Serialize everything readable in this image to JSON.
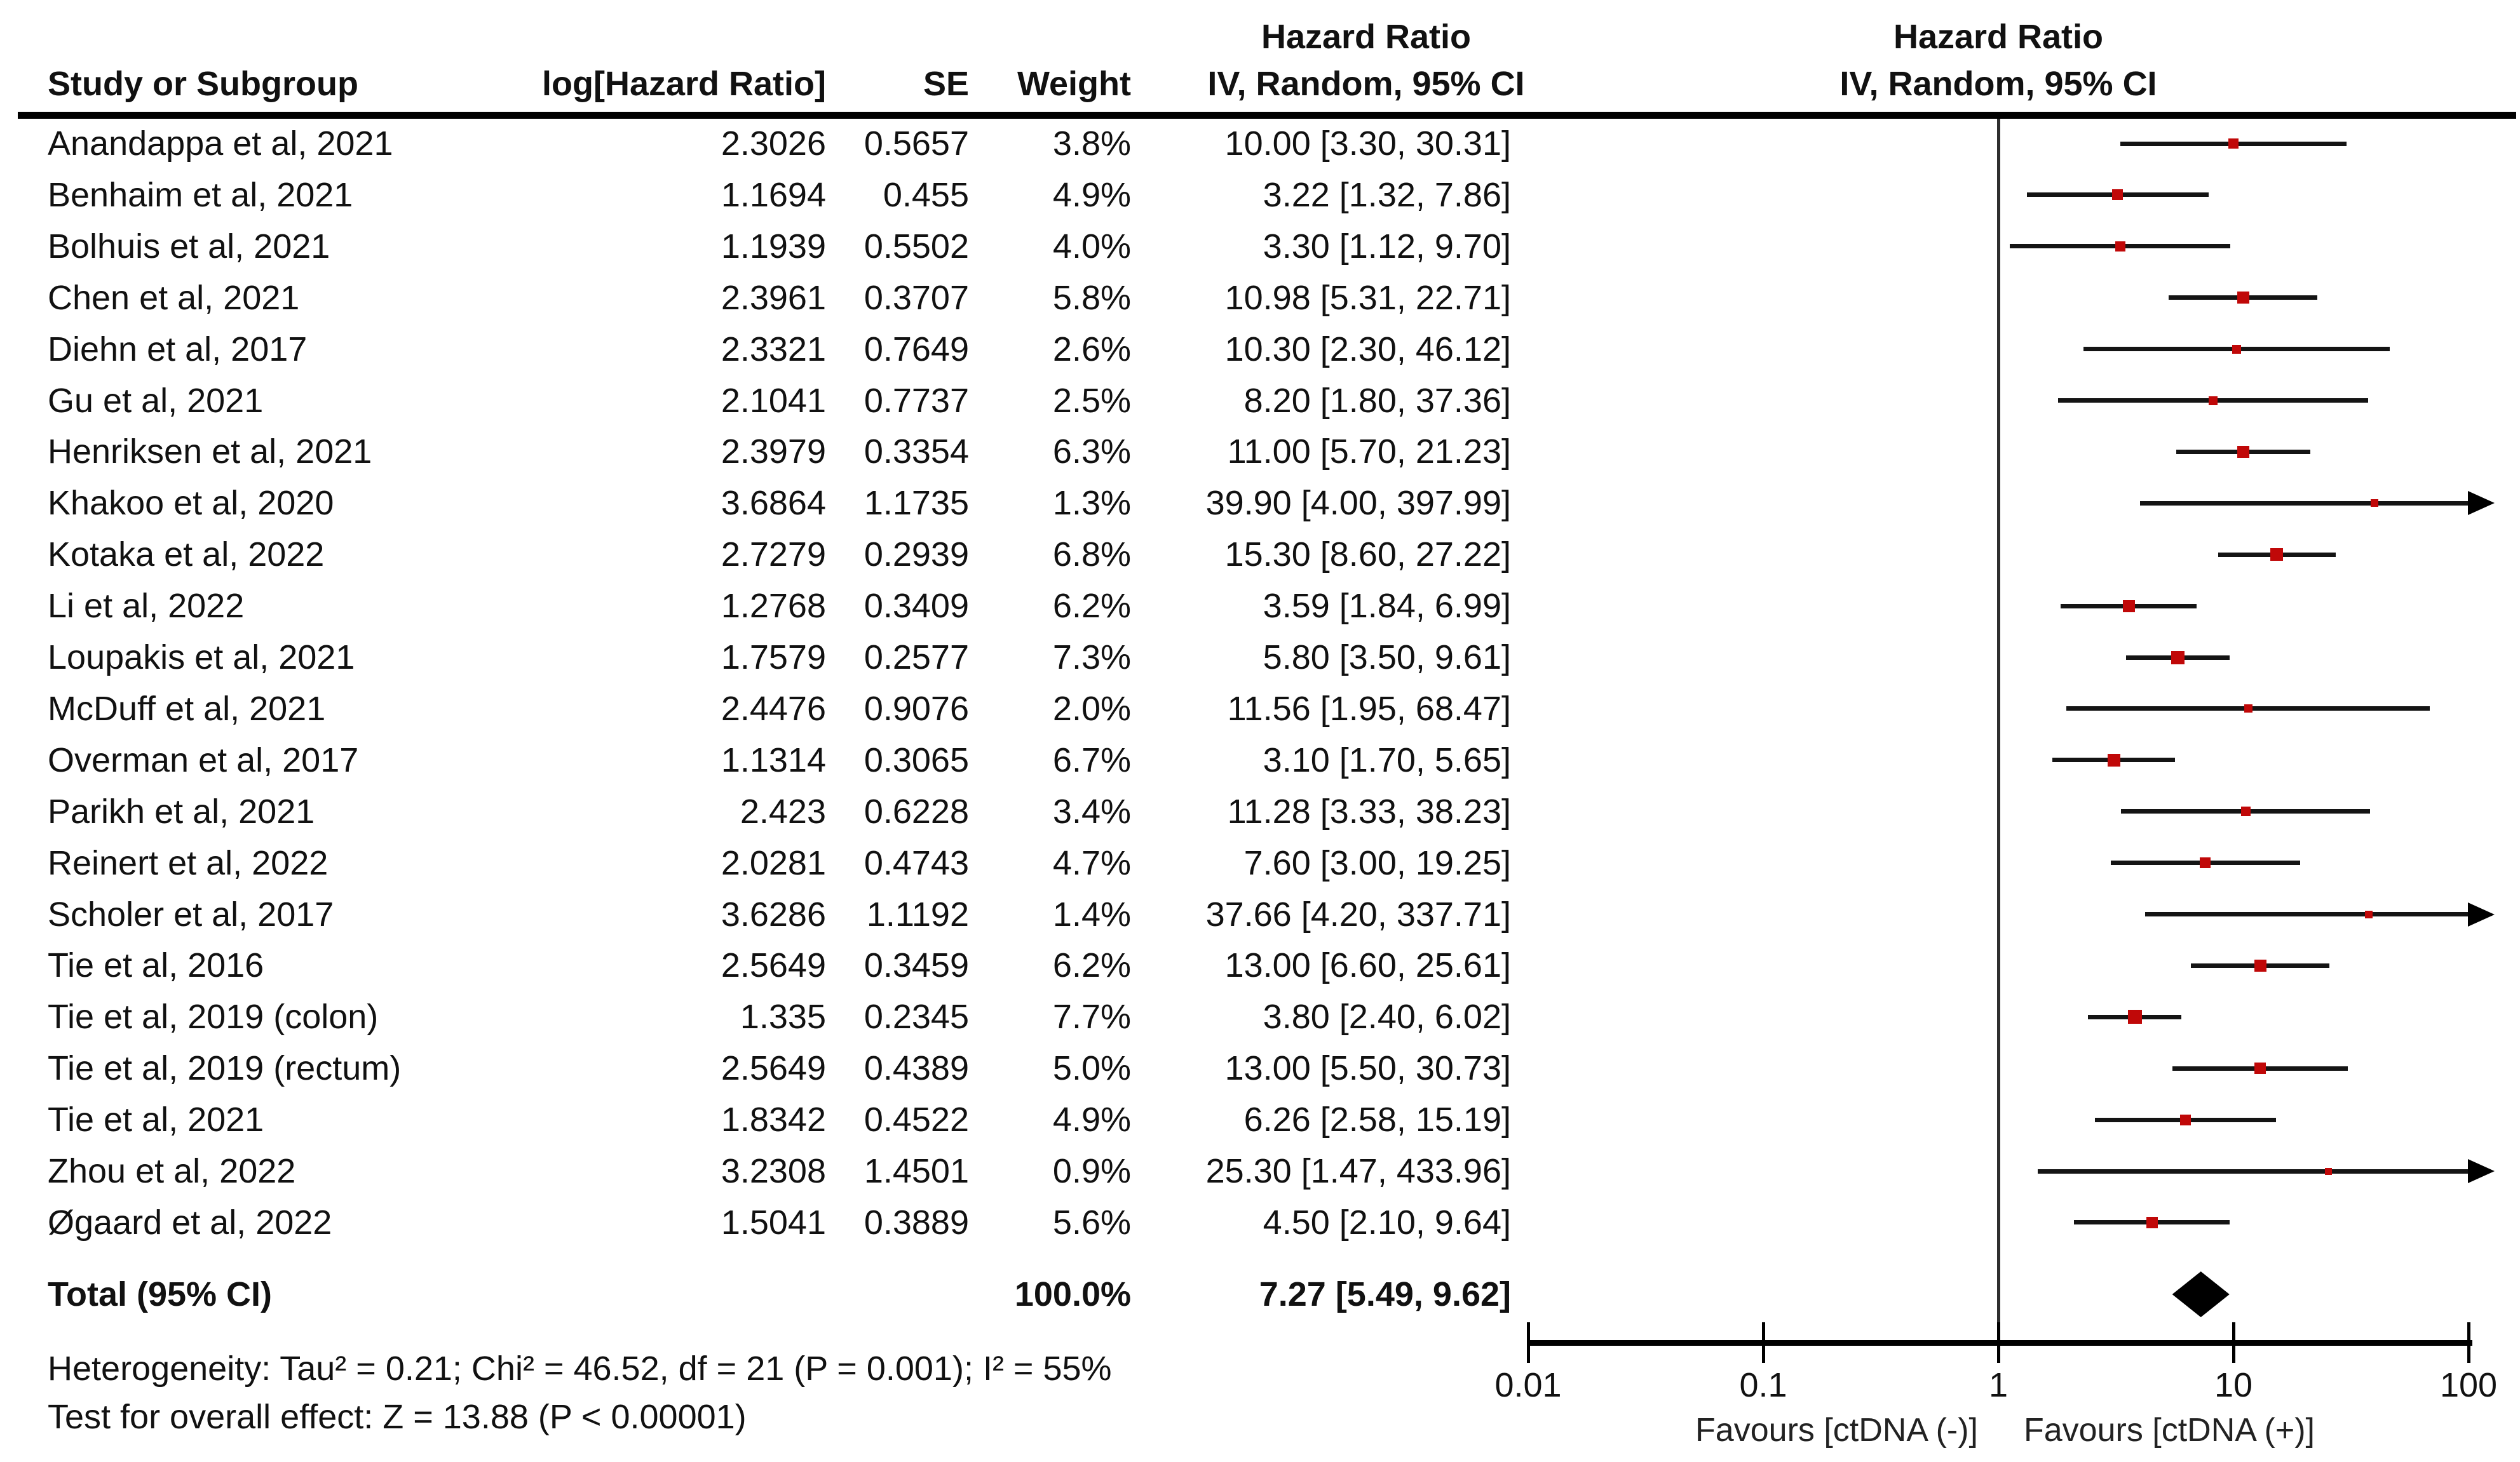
{
  "chart_data": {
    "type": "forest",
    "columns": {
      "study": "Study or Subgroup",
      "log_hr": "log[Hazard Ratio]",
      "se": "SE",
      "weight": "Weight",
      "hr_group": "Hazard Ratio",
      "hr_method": "IV, Random, 95% CI"
    },
    "plot_header": {
      "line1": "Hazard Ratio",
      "line2": "IV, Random, 95% CI"
    },
    "studies": [
      {
        "name": "Anandappa et al, 2021",
        "log_hr": "2.3026",
        "se": "0.5657",
        "weight": "3.8%",
        "ci_text": "10.00 [3.30, 30.31]",
        "hr": 10.0,
        "lo": 3.3,
        "hi": 30.31,
        "weight_pct": 3.8,
        "arrow": false
      },
      {
        "name": "Benhaim et al, 2021",
        "log_hr": "1.1694",
        "se": "0.455",
        "weight": "4.9%",
        "ci_text": "3.22 [1.32, 7.86]",
        "hr": 3.22,
        "lo": 1.32,
        "hi": 7.86,
        "weight_pct": 4.9,
        "arrow": false
      },
      {
        "name": "Bolhuis et al, 2021",
        "log_hr": "1.1939",
        "se": "0.5502",
        "weight": "4.0%",
        "ci_text": "3.30 [1.12, 9.70]",
        "hr": 3.3,
        "lo": 1.12,
        "hi": 9.7,
        "weight_pct": 4.0,
        "arrow": false
      },
      {
        "name": "Chen et al, 2021",
        "log_hr": "2.3961",
        "se": "0.3707",
        "weight": "5.8%",
        "ci_text": "10.98 [5.31, 22.71]",
        "hr": 10.98,
        "lo": 5.31,
        "hi": 22.71,
        "weight_pct": 5.8,
        "arrow": false
      },
      {
        "name": "Diehn et al, 2017",
        "log_hr": "2.3321",
        "se": "0.7649",
        "weight": "2.6%",
        "ci_text": "10.30 [2.30, 46.12]",
        "hr": 10.3,
        "lo": 2.3,
        "hi": 46.12,
        "weight_pct": 2.6,
        "arrow": false
      },
      {
        "name": "Gu et al, 2021",
        "log_hr": "2.1041",
        "se": "0.7737",
        "weight": "2.5%",
        "ci_text": "8.20 [1.80, 37.36]",
        "hr": 8.2,
        "lo": 1.8,
        "hi": 37.36,
        "weight_pct": 2.5,
        "arrow": false
      },
      {
        "name": "Henriksen et al, 2021",
        "log_hr": "2.3979",
        "se": "0.3354",
        "weight": "6.3%",
        "ci_text": "11.00 [5.70, 21.23]",
        "hr": 11.0,
        "lo": 5.7,
        "hi": 21.23,
        "weight_pct": 6.3,
        "arrow": false
      },
      {
        "name": "Khakoo et al, 2020",
        "log_hr": "3.6864",
        "se": "1.1735",
        "weight": "1.3%",
        "ci_text": "39.90 [4.00, 397.99]",
        "hr": 39.9,
        "lo": 4.0,
        "hi": 397.99,
        "weight_pct": 1.3,
        "arrow": true
      },
      {
        "name": "Kotaka et al, 2022",
        "log_hr": "2.7279",
        "se": "0.2939",
        "weight": "6.8%",
        "ci_text": "15.30 [8.60, 27.22]",
        "hr": 15.3,
        "lo": 8.6,
        "hi": 27.22,
        "weight_pct": 6.8,
        "arrow": false
      },
      {
        "name": "Li et al, 2022",
        "log_hr": "1.2768",
        "se": "0.3409",
        "weight": "6.2%",
        "ci_text": "3.59 [1.84, 6.99]",
        "hr": 3.59,
        "lo": 1.84,
        "hi": 6.99,
        "weight_pct": 6.2,
        "arrow": false
      },
      {
        "name": "Loupakis et al, 2021",
        "log_hr": "1.7579",
        "se": "0.2577",
        "weight": "7.3%",
        "ci_text": "5.80 [3.50, 9.61]",
        "hr": 5.8,
        "lo": 3.5,
        "hi": 9.61,
        "weight_pct": 7.3,
        "arrow": false
      },
      {
        "name": "McDuff et al, 2021",
        "log_hr": "2.4476",
        "se": "0.9076",
        "weight": "2.0%",
        "ci_text": "11.56 [1.95, 68.47]",
        "hr": 11.56,
        "lo": 1.95,
        "hi": 68.47,
        "weight_pct": 2.0,
        "arrow": false
      },
      {
        "name": "Overman et al, 2017",
        "log_hr": "1.1314",
        "se": "0.3065",
        "weight": "6.7%",
        "ci_text": "3.10 [1.70, 5.65]",
        "hr": 3.1,
        "lo": 1.7,
        "hi": 5.65,
        "weight_pct": 6.7,
        "arrow": false
      },
      {
        "name": "Parikh et al, 2021",
        "log_hr": "2.423",
        "se": "0.6228",
        "weight": "3.4%",
        "ci_text": "11.28 [3.33, 38.23]",
        "hr": 11.28,
        "lo": 3.33,
        "hi": 38.23,
        "weight_pct": 3.4,
        "arrow": false
      },
      {
        "name": "Reinert et al, 2022",
        "log_hr": "2.0281",
        "se": "0.4743",
        "weight": "4.7%",
        "ci_text": "7.60 [3.00, 19.25]",
        "hr": 7.6,
        "lo": 3.0,
        "hi": 19.25,
        "weight_pct": 4.7,
        "arrow": false
      },
      {
        "name": "Scholer et al, 2017",
        "log_hr": "3.6286",
        "se": "1.1192",
        "weight": "1.4%",
        "ci_text": "37.66 [4.20, 337.71]",
        "hr": 37.66,
        "lo": 4.2,
        "hi": 337.71,
        "weight_pct": 1.4,
        "arrow": true
      },
      {
        "name": "Tie et al, 2016",
        "log_hr": "2.5649",
        "se": "0.3459",
        "weight": "6.2%",
        "ci_text": "13.00 [6.60, 25.61]",
        "hr": 13.0,
        "lo": 6.6,
        "hi": 25.61,
        "weight_pct": 6.2,
        "arrow": false
      },
      {
        "name": "Tie et al, 2019 (colon)",
        "log_hr": "1.335",
        "se": "0.2345",
        "weight": "7.7%",
        "ci_text": "3.80 [2.40, 6.02]",
        "hr": 3.8,
        "lo": 2.4,
        "hi": 6.02,
        "weight_pct": 7.7,
        "arrow": false
      },
      {
        "name": "Tie et al, 2019 (rectum)",
        "log_hr": "2.5649",
        "se": "0.4389",
        "weight": "5.0%",
        "ci_text": "13.00 [5.50, 30.73]",
        "hr": 13.0,
        "lo": 5.5,
        "hi": 30.73,
        "weight_pct": 5.0,
        "arrow": false
      },
      {
        "name": "Tie et al, 2021",
        "log_hr": "1.8342",
        "se": "0.4522",
        "weight": "4.9%",
        "ci_text": "6.26 [2.58, 15.19]",
        "hr": 6.26,
        "lo": 2.58,
        "hi": 15.19,
        "weight_pct": 4.9,
        "arrow": false
      },
      {
        "name": "Zhou et al, 2022",
        "log_hr": "3.2308",
        "se": "1.4501",
        "weight": "0.9%",
        "ci_text": "25.30 [1.47, 433.96]",
        "hr": 25.3,
        "lo": 1.47,
        "hi": 433.96,
        "weight_pct": 0.9,
        "arrow": true
      },
      {
        "name": "Øgaard et al, 2022",
        "log_hr": "1.5041",
        "se": "0.3889",
        "weight": "5.6%",
        "ci_text": "4.50 [2.10, 9.64]",
        "hr": 4.5,
        "lo": 2.1,
        "hi": 9.64,
        "weight_pct": 5.6,
        "arrow": false
      }
    ],
    "total": {
      "label": "Total (95% CI)",
      "weight": "100.0%",
      "ci_text": "7.27 [5.49, 9.62]",
      "hr": 7.27,
      "lo": 5.49,
      "hi": 9.62
    },
    "heterogeneity": "Heterogeneity: Tau² = 0.21; Chi² = 46.52, df = 21 (P = 0.001); I² = 55%",
    "overall_effect": "Test for overall effect: Z = 13.88 (P < 0.00001)",
    "axis": {
      "scale": "log",
      "min": 0.01,
      "max": 100,
      "ticks": [
        0.01,
        0.1,
        1,
        10,
        100
      ],
      "labels": [
        "0.01",
        "0.1",
        "1",
        "10",
        "100"
      ]
    },
    "favours_left": "Favours [ctDNA (-)]",
    "favours_right": "Favours [ctDNA (+)]",
    "colors": {
      "marker": "#c00808",
      "ci_line": "#141414",
      "diamond": "#000000",
      "axis": "#000000",
      "null_line": "#2e2e2e"
    }
  }
}
